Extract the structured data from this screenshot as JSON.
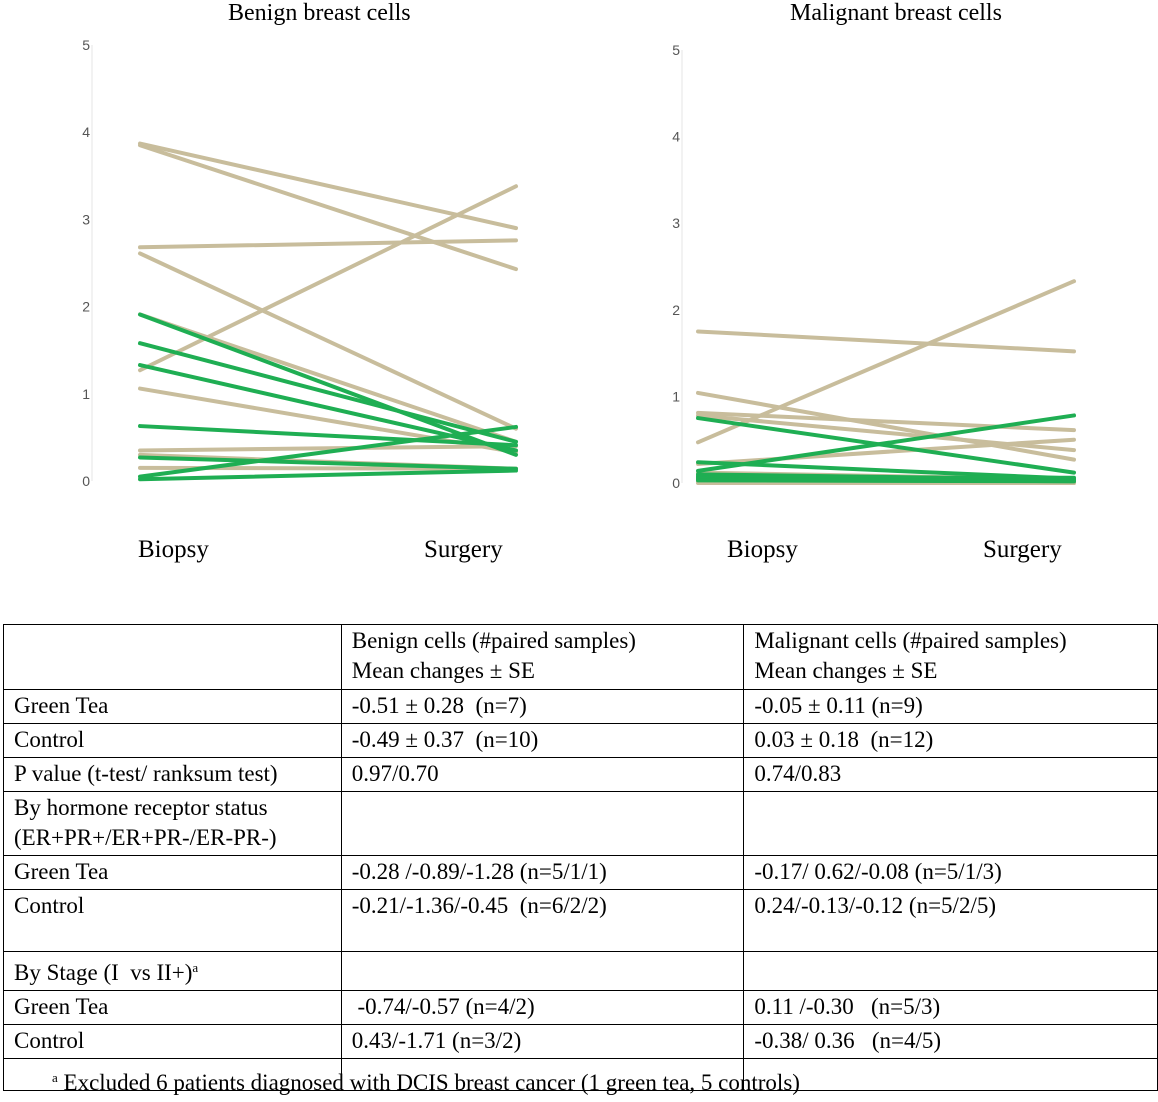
{
  "chart_data": [
    {
      "type": "line",
      "title": "Benign breast cells",
      "categories": [
        "Biopsy",
        "Surgery"
      ],
      "ylim": [
        0,
        5
      ],
      "yticks": [
        "0",
        "1",
        "2",
        "3",
        "4",
        "5"
      ],
      "series": [
        {
          "name": "Control",
          "color": "#c8bd9c",
          "pairs": [
            [
              3.85,
              2.43
            ],
            [
              3.87,
              2.9
            ],
            [
              2.68,
              2.76
            ],
            [
              1.27,
              3.38
            ],
            [
              2.61,
              0.6
            ],
            [
              1.91,
              0.45
            ],
            [
              1.06,
              0.33
            ],
            [
              0.35,
              0.4
            ],
            [
              0.3,
              0.14
            ],
            [
              0.15,
              0.14
            ]
          ]
        },
        {
          "name": "Green Tea",
          "color": "#1fae53",
          "pairs": [
            [
              1.91,
              0.3
            ],
            [
              1.58,
              0.45
            ],
            [
              1.33,
              0.35
            ],
            [
              0.63,
              0.41
            ],
            [
              0.27,
              0.14
            ],
            [
              0.05,
              0.62
            ],
            [
              0.02,
              0.12
            ]
          ]
        }
      ]
    },
    {
      "type": "line",
      "title": "Malignant breast cells",
      "categories": [
        "Biopsy",
        "Surgery"
      ],
      "ylim": [
        0,
        5
      ],
      "yticks": [
        "0",
        "1",
        "2",
        "3",
        "4",
        "5"
      ],
      "series": [
        {
          "name": "Control",
          "color": "#c8bd9c",
          "pairs": [
            [
              1.75,
              1.52
            ],
            [
              0.47,
              2.33
            ],
            [
              1.04,
              0.27
            ],
            [
              0.81,
              0.61
            ],
            [
              0.78,
              0.38
            ],
            [
              0.22,
              0.5
            ],
            [
              0.12,
              0.04
            ],
            [
              0.07,
              0.02
            ],
            [
              0.04,
              0.02
            ],
            [
              0.02,
              0.01
            ],
            [
              0.01,
              0.0
            ],
            [
              0.0,
              0.0
            ]
          ]
        },
        {
          "name": "Green Tea",
          "color": "#1fae53",
          "pairs": [
            [
              0.75,
              0.12
            ],
            [
              0.24,
              0.05
            ],
            [
              0.14,
              0.78
            ],
            [
              0.1,
              0.04
            ],
            [
              0.08,
              0.03
            ],
            [
              0.06,
              0.06
            ],
            [
              0.05,
              0.02
            ],
            [
              0.04,
              0.03
            ],
            [
              0.03,
              0.02
            ]
          ]
        }
      ]
    }
  ],
  "table": {
    "header": [
      "",
      "Benign cells (#paired samples)\nMean changes ± SE",
      "Malignant cells (#paired samples)\nMean changes ± SE"
    ],
    "rows": [
      [
        "Green Tea",
        "-0.51 ± 0.28  (n=7)",
        "-0.05 ± 0.11 (n=9)"
      ],
      [
        "Control",
        "-0.49 ± 0.37  (n=10)",
        "0.03 ± 0.18  (n=12)"
      ],
      [
        "P value (t-test/ ranksum test)",
        "0.97/0.70",
        "0.74/0.83"
      ],
      [
        "By hormone receptor status\n(ER+PR+/ER+PR-/ER-PR-)",
        "",
        ""
      ],
      [
        "Green Tea",
        "-0.28 /-0.89/-1.28 (n=5/1/1)",
        "-0.17/ 0.62/-0.08 (n=5/1/3)"
      ],
      [
        "Control",
        "-0.21/-1.36/-0.45  (n=6/2/2)",
        "0.24/-0.13/-0.12 (n=5/2/5)"
      ],
      [
        "By Stage (I  vs II+)",
        "",
        ""
      ],
      [
        "Green Tea",
        " -0.74/-0.57 (n=4/2)",
        "0.11 /-0.30   (n=5/3)"
      ],
      [
        "Control",
        "0.43/-1.71 (n=3/2)",
        "-0.38/ 0.36   (n=4/5)"
      ],
      [
        "",
        "",
        ""
      ]
    ],
    "stage_footnote_marker": "a"
  },
  "footnote": {
    "marker": "a",
    "text": " Excluded 6 patients diagnosed with DCIS breast cancer (1 green tea, 5 controls)"
  }
}
